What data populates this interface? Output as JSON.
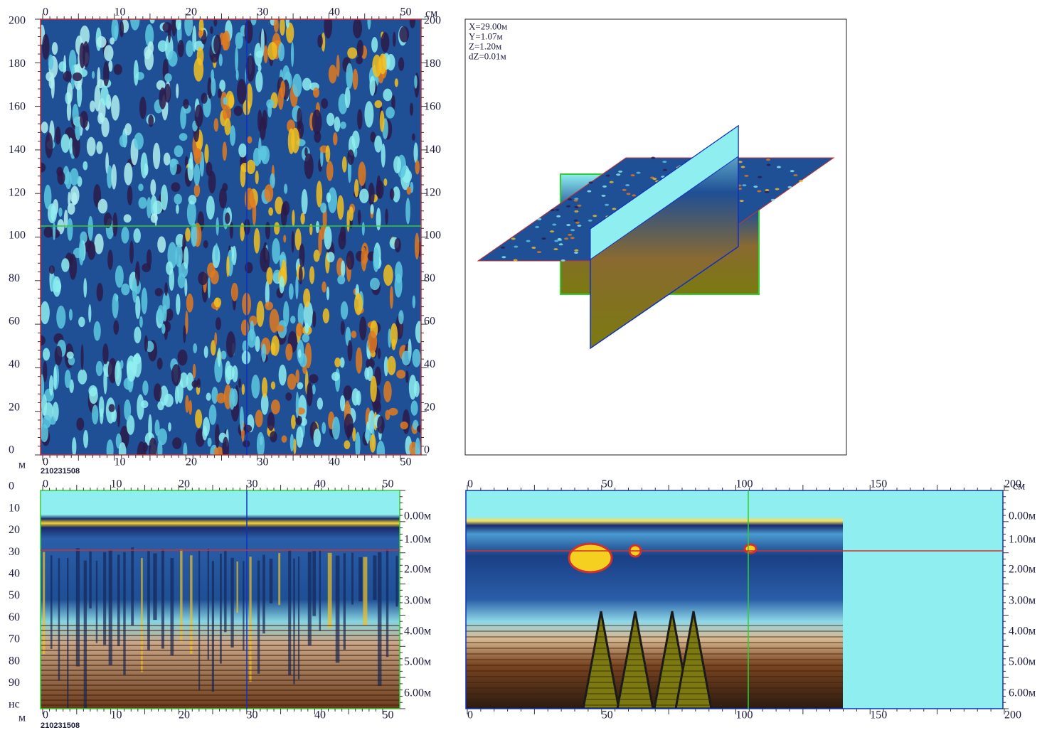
{
  "plan": {
    "top_ticks": [
      0,
      10,
      20,
      30,
      40,
      50
    ],
    "top_unit": "см",
    "left_ticks": [
      200,
      180,
      160,
      140,
      120,
      100,
      80,
      60,
      40,
      20,
      0
    ],
    "right_ticks": [
      200,
      180,
      160,
      140,
      120,
      100,
      80,
      60,
      40,
      20,
      0
    ],
    "bottom_ticks": [
      0,
      10,
      20,
      30,
      40,
      50
    ],
    "bottom_unit": "м",
    "file_id": "210231508"
  },
  "view3d": {
    "info": [
      "X=29.00м",
      "Y=1.07м",
      "Z=1.20м",
      "dZ=0.01м"
    ]
  },
  "profile_x": {
    "top_ticks": [
      0,
      10,
      20,
      30,
      40,
      50
    ],
    "left_ticks": [
      0,
      10,
      20,
      30,
      40,
      50,
      60,
      70,
      80,
      90
    ],
    "left_unit": "нс",
    "depth_labels": [
      "0.00м",
      "1.00м",
      "2.00м",
      "3.00м",
      "4.00м",
      "5.00м",
      "6.00м"
    ],
    "bottom_ticks": [
      0,
      10,
      20,
      30,
      40,
      50
    ],
    "bottom_unit": "м",
    "file_id": "210231508"
  },
  "profile_y": {
    "top_ticks": [
      0,
      50,
      100,
      150,
      200
    ],
    "top_unit": "см",
    "depth_labels": [
      "0.00м",
      "1.00м",
      "2.00м",
      "3.00м",
      "4.00м",
      "5.00м",
      "6.00м"
    ],
    "bottom_ticks": [
      0,
      50,
      100,
      150,
      200
    ]
  }
}
